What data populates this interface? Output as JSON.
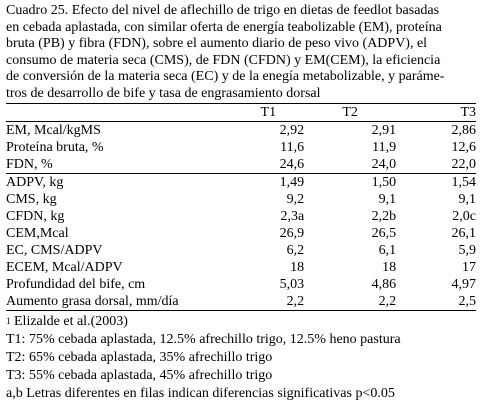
{
  "caption": {
    "lines": [
      "Cuadro 25. Efecto del nivel de aflechillo de trigo en dietas de feedlot basadas",
      "en cebada aplastada, con similar oferta de energía teabolizable (EM), proteína",
      "bruta (PB) y fibra (FDN), sobre el aumento diario de peso vivo (ADPV), el",
      "consumo de materia seca (CMS), de FDN  (CFDN) y EM(CEM), la eficiencia",
      "de conversión de la materia seca (EC) y de la enegía metabolizable, y  paráme-",
      "tros de desarrollo de bife y tasa de engrasamiento dorsal"
    ]
  },
  "table": {
    "headers": [
      "",
      "T1",
      "T2",
      "T3"
    ],
    "groups": [
      [
        [
          "EM, Mcal/kgMS",
          "2,92",
          "2,91",
          "2,86"
        ],
        [
          "Proteína bruta, %",
          "11,6",
          "11,9",
          "12,6"
        ],
        [
          "FDN, %",
          "24,6",
          "24,0",
          "22,0"
        ]
      ],
      [
        [
          "ADPV, kg",
          "1,49",
          "1,50",
          "1,54"
        ],
        [
          "CMS, kg",
          "9,2",
          "9,1",
          "9,1"
        ],
        [
          "CFDN, kg",
          "2,3a",
          "2,2b",
          "2,0c"
        ],
        [
          "CEM,Mcal",
          "26,9",
          "26,5",
          "26,1"
        ],
        [
          "EC, CMS/ADPV",
          "6,2",
          "6,1",
          "5,9"
        ],
        [
          "ECEM, Mcal/ADPV",
          "18",
          "18",
          "17"
        ],
        [
          "Profundidad del bife, cm",
          "5,03",
          "4,86",
          "4,97"
        ],
        [
          "Aumento grasa dorsal, mm/día",
          "2,2",
          "2,2",
          "2,5"
        ]
      ]
    ]
  },
  "notes": {
    "source_sup": "1",
    "source": " Elizalde et al.(2003)",
    "t1": "T1: 75% cebada aplastada, 12.5% afrechillo trigo, 12.5% heno pastura",
    "t2": "T2: 65% cebada aplastada, 35% afrechillo trigo",
    "t3": "T3: 55% cebada aplastada, 45% afrechillo trigo",
    "letters": "a,b Letras diferentes en filas indican diferencias significativas p<0.05"
  }
}
